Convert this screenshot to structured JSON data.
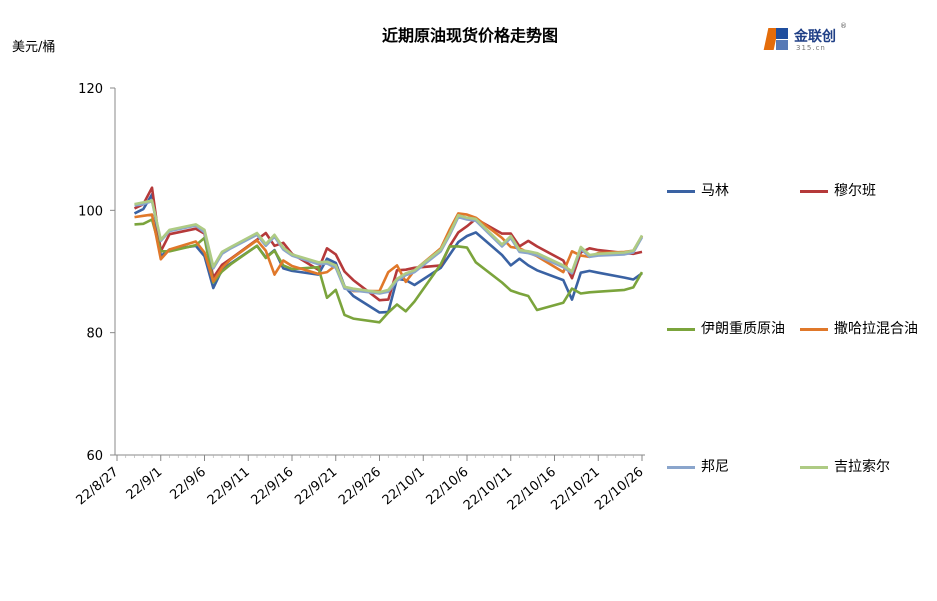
{
  "title": "近期原油现货价格走势图",
  "y_unit": "美元/桶",
  "logo": {
    "name": "金联创",
    "sub": "315.cn",
    "reg": "®"
  },
  "chart_data": {
    "type": "line",
    "title": "近期原油现货价格走势图",
    "ylabel": "美元/桶",
    "xlabel": "",
    "ylim": [
      60,
      120
    ],
    "yticks": [
      60,
      80,
      100,
      120
    ],
    "x_ticks": [
      "22/8/27",
      "22/9/1",
      "22/9/6",
      "22/9/11",
      "22/9/16",
      "22/9/21",
      "22/9/26",
      "22/10/1",
      "22/10/6",
      "22/10/11",
      "22/10/16",
      "22/10/21",
      "22/10/26"
    ],
    "x": [
      "22/8/29",
      "22/8/30",
      "22/8/31",
      "22/9/1",
      "22/9/2",
      "22/9/5",
      "22/9/6",
      "22/9/7",
      "22/9/8",
      "22/9/9",
      "22/9/12",
      "22/9/13",
      "22/9/14",
      "22/9/15",
      "22/9/16",
      "22/9/19",
      "22/9/20",
      "22/9/21",
      "22/9/22",
      "22/9/23",
      "22/9/26",
      "22/9/27",
      "22/9/28",
      "22/9/29",
      "22/9/30",
      "22/10/3",
      "22/10/4",
      "22/10/5",
      "22/10/6",
      "22/10/7",
      "22/10/10",
      "22/10/11",
      "22/10/12",
      "22/10/13",
      "22/10/14",
      "22/10/17",
      "22/10/18",
      "22/10/19",
      "22/10/20",
      "22/10/21",
      "22/10/24",
      "22/10/25",
      "22/10/26"
    ],
    "grid": false,
    "legend_position": "right",
    "series": [
      {
        "name": "马林",
        "color": "#3a62a3",
        "values": [
          99.5,
          100.2,
          102.6,
          92.5,
          93.6,
          94.2,
          92.5,
          87.3,
          90.3,
          91.3,
          94.2,
          92.3,
          93.5,
          90.5,
          90.1,
          89.5,
          92.1,
          91.4,
          87.6,
          86.0,
          83.3,
          83.4,
          88.8,
          88.6,
          87.8,
          90.6,
          92.7,
          94.8,
          95.8,
          96.4,
          92.7,
          91.0,
          92.1,
          91.0,
          90.2,
          88.6,
          85.4,
          89.8,
          90.1,
          89.8,
          89.0,
          88.7,
          89.7
        ]
      },
      {
        "name": "穆尔班",
        "color": "#b5393a",
        "values": [
          100.3,
          101.0,
          103.7,
          93.3,
          96.1,
          97.0,
          96.2,
          89.0,
          91.1,
          92.1,
          95.2,
          96.3,
          94.2,
          94.7,
          92.9,
          90.3,
          93.8,
          92.8,
          90.0,
          88.6,
          85.3,
          85.4,
          90.2,
          90.3,
          90.6,
          91.0,
          94.1,
          96.4,
          97.4,
          98.6,
          96.2,
          96.2,
          94.1,
          95.0,
          94.1,
          91.8,
          88.9,
          93.1,
          93.8,
          93.5,
          93.0,
          92.9,
          93.2
        ]
      },
      {
        "name": "伊朗重质原油",
        "color": "#7ba43c",
        "values": [
          97.7,
          97.8,
          98.5,
          93.3,
          93.3,
          94.3,
          95.5,
          88.2,
          90.0,
          91.2,
          94.2,
          92.2,
          93.4,
          91.0,
          90.4,
          90.7,
          85.7,
          87.0,
          82.9,
          82.3,
          81.7,
          83.3,
          84.6,
          83.5,
          85.1,
          91.2,
          94.1,
          94.1,
          93.9,
          91.5,
          88.2,
          86.9,
          86.4,
          86.0,
          83.7,
          84.9,
          87.2,
          86.4,
          86.6,
          86.7,
          87.0,
          87.4,
          89.9
        ]
      },
      {
        "name": "撒哈拉混合油",
        "color": "#e0782a",
        "values": [
          98.9,
          99.1,
          99.3,
          92.0,
          93.6,
          94.9,
          93.1,
          88.4,
          90.6,
          92.0,
          95.1,
          93.4,
          89.5,
          91.8,
          90.9,
          89.6,
          89.9,
          91.0,
          87.4,
          86.8,
          86.8,
          89.9,
          91.0,
          88.3,
          90.2,
          93.8,
          96.8,
          99.5,
          99.3,
          98.8,
          95.5,
          94.0,
          93.8,
          93.1,
          92.5,
          89.9,
          93.3,
          92.6,
          92.4,
          93.0,
          93.2,
          93.4,
          95.8
        ]
      },
      {
        "name": "邦尼",
        "color": "#8aa5cc",
        "values": [
          100.8,
          101.0,
          101.5,
          95.0,
          96.6,
          97.5,
          96.4,
          90.5,
          92.9,
          93.8,
          96.0,
          94.2,
          95.7,
          93.6,
          92.6,
          91.2,
          91.3,
          90.6,
          87.2,
          86.9,
          86.4,
          86.7,
          88.5,
          89.4,
          89.9,
          93.3,
          95.9,
          98.9,
          98.5,
          98.3,
          94.1,
          95.5,
          93.2,
          93.0,
          92.6,
          90.7,
          89.7,
          93.7,
          92.4,
          92.6,
          92.8,
          93.1,
          95.6
        ]
      },
      {
        "name": "吉拉索尔",
        "color": "#aecb84",
        "values": [
          101.0,
          101.3,
          101.6,
          95.2,
          96.8,
          97.7,
          96.8,
          90.8,
          93.2,
          94.0,
          96.3,
          94.5,
          96.0,
          93.9,
          92.8,
          91.5,
          91.6,
          91.0,
          87.5,
          87.2,
          86.6,
          87.0,
          88.8,
          89.7,
          90.2,
          93.6,
          96.2,
          99.2,
          98.8,
          98.6,
          94.4,
          95.8,
          93.5,
          93.3,
          93.0,
          91.0,
          90.0,
          94.0,
          92.7,
          92.9,
          93.1,
          93.4,
          95.9
        ]
      }
    ]
  }
}
